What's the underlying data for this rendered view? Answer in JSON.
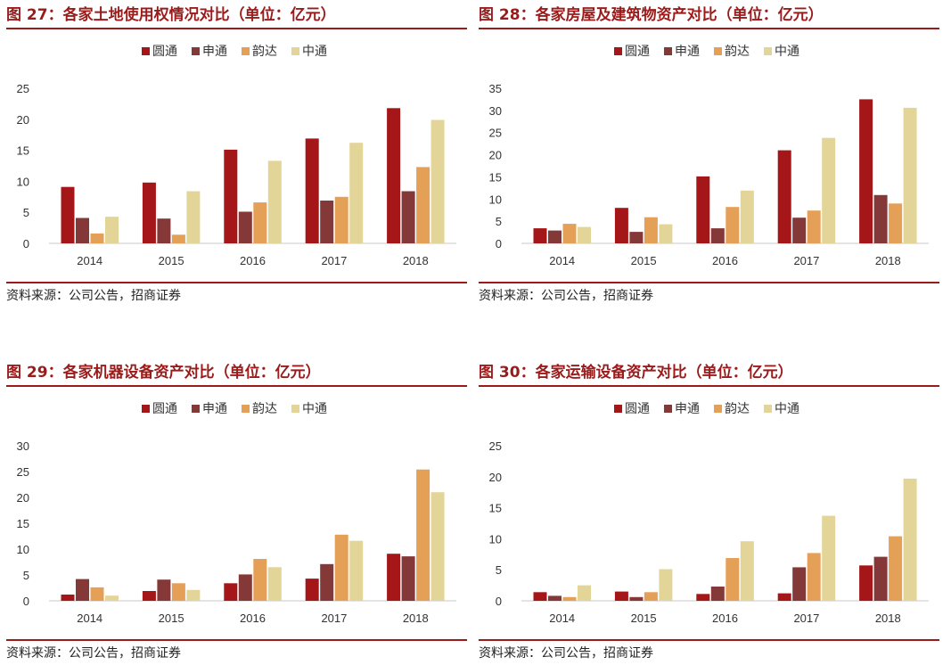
{
  "colors": [
    "#a51618",
    "#843838",
    "#e5a057",
    "#e3d497"
  ],
  "legend": [
    "圆通",
    "申通",
    "韵达",
    "中通"
  ],
  "chart_data": [
    {
      "type": "bar",
      "title": "图 27：各家土地使用权情况对比（单位：亿元）",
      "source": "资料来源：公司公告，招商证券",
      "categories": [
        "2014",
        "2015",
        "2016",
        "2017",
        "2018"
      ],
      "yticks": [
        "0",
        "5",
        "10",
        "15",
        "20",
        "25"
      ],
      "ylim": [
        0,
        25
      ],
      "series": [
        {
          "name": "圆通",
          "values": [
            9.1,
            9.8,
            15.1,
            16.9,
            21.8
          ]
        },
        {
          "name": "申通",
          "values": [
            4.1,
            4.0,
            5.1,
            6.9,
            8.4
          ]
        },
        {
          "name": "韵达",
          "values": [
            1.6,
            1.4,
            6.6,
            7.5,
            12.3
          ]
        },
        {
          "name": "中通",
          "values": [
            4.3,
            8.4,
            13.3,
            16.2,
            19.9
          ]
        }
      ]
    },
    {
      "type": "bar",
      "title": "图 28：各家房屋及建筑物资产对比（单位：亿元）",
      "source": "资料来源：公司公告，招商证券",
      "categories": [
        "2014",
        "2015",
        "2016",
        "2017",
        "2018"
      ],
      "yticks": [
        "0",
        "5",
        "10",
        "15",
        "20",
        "25",
        "30",
        "35"
      ],
      "ylim": [
        0,
        35
      ],
      "series": [
        {
          "name": "圆通",
          "values": [
            3.4,
            8.0,
            15.1,
            21.0,
            32.5
          ]
        },
        {
          "name": "申通",
          "values": [
            2.9,
            2.6,
            3.4,
            5.8,
            10.9
          ]
        },
        {
          "name": "韵达",
          "values": [
            4.4,
            5.9,
            8.2,
            7.4,
            9.0
          ]
        },
        {
          "name": "中通",
          "values": [
            3.7,
            4.3,
            11.9,
            23.8,
            30.6
          ]
        }
      ]
    },
    {
      "type": "bar",
      "title": "图 29：各家机器设备资产对比（单位：亿元）",
      "source": "资料来源：公司公告，招商证券",
      "categories": [
        "2014",
        "2015",
        "2016",
        "2017",
        "2018"
      ],
      "yticks": [
        "0",
        "5",
        "10",
        "15",
        "20",
        "25",
        "30"
      ],
      "ylim": [
        0,
        30
      ],
      "series": [
        {
          "name": "圆通",
          "values": [
            1.2,
            1.9,
            3.4,
            4.3,
            9.1
          ]
        },
        {
          "name": "申通",
          "values": [
            4.2,
            4.1,
            5.1,
            7.1,
            8.6
          ]
        },
        {
          "name": "韵达",
          "values": [
            2.6,
            3.4,
            8.1,
            12.8,
            25.4
          ]
        },
        {
          "name": "中通",
          "values": [
            1.0,
            2.1,
            6.5,
            11.6,
            21.0
          ]
        }
      ]
    },
    {
      "type": "bar",
      "title": "图 30：各家运输设备资产对比（单位：亿元）",
      "source": "资料来源：公司公告，招商证券",
      "categories": [
        "2014",
        "2015",
        "2016",
        "2017",
        "2018"
      ],
      "yticks": [
        "0",
        "5",
        "10",
        "15",
        "20",
        "25"
      ],
      "ylim": [
        0,
        25
      ],
      "series": [
        {
          "name": "圆通",
          "values": [
            1.4,
            1.5,
            1.1,
            1.2,
            5.7
          ]
        },
        {
          "name": "申通",
          "values": [
            0.8,
            0.6,
            2.3,
            5.4,
            7.1
          ]
        },
        {
          "name": "韵达",
          "values": [
            0.6,
            1.4,
            6.9,
            7.7,
            10.4
          ]
        },
        {
          "name": "中通",
          "values": [
            2.5,
            5.1,
            9.6,
            13.7,
            19.7
          ]
        }
      ]
    }
  ]
}
